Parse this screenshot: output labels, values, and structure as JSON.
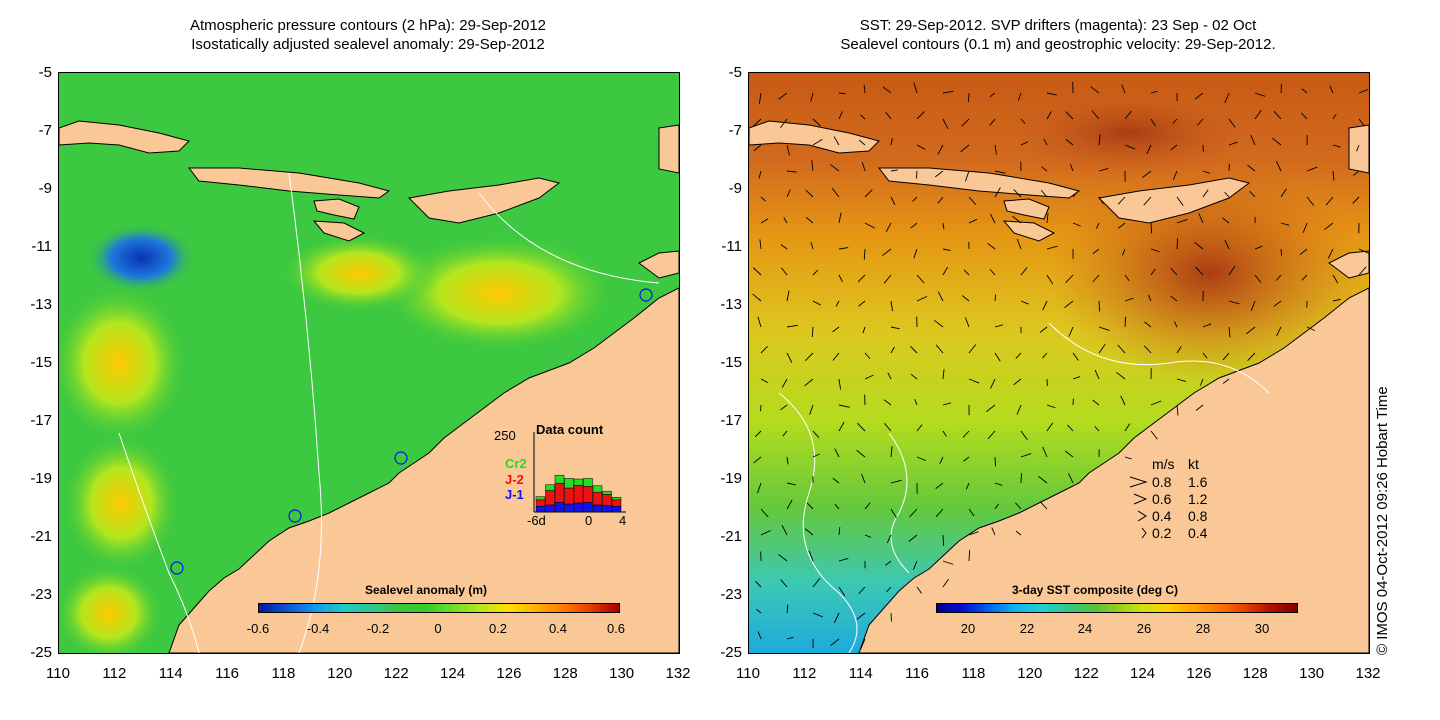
{
  "left_panel": {
    "title_line1": "Atmospheric pressure contours (2 hPa): 29-Sep-2012",
    "title_line2": "Isostatically adjusted sealevel anomaly: 29-Sep-2012",
    "colorbar": {
      "title": "Sealevel anomaly (m)",
      "ticks": [
        "-0.6",
        "-0.4",
        "-0.2",
        "0",
        "0.2",
        "0.4",
        "0.6"
      ],
      "colors": [
        "#081a9a",
        "#0a52d6",
        "#1496e8",
        "#20c8c8",
        "#30c890",
        "#40c040",
        "#30d02a",
        "#70dc2a",
        "#b6e620",
        "#ffe000",
        "#ffb000",
        "#ff7a00",
        "#e63a00",
        "#a00000"
      ]
    },
    "data_count": {
      "title": "Data count",
      "ymax_label": "250",
      "x_labels": [
        "-6d",
        "0",
        "4"
      ],
      "missions": [
        {
          "name": "Cr2",
          "color": "#22dd22"
        },
        {
          "name": "J-2",
          "color": "#ee1111"
        },
        {
          "name": "J-1",
          "color": "#1111ee"
        }
      ],
      "bars": [
        {
          "j1": 18,
          "j2": 20,
          "cr2": 10
        },
        {
          "j1": 22,
          "j2": 45,
          "cr2": 18
        },
        {
          "j1": 30,
          "j2": 60,
          "cr2": 25
        },
        {
          "j1": 25,
          "j2": 50,
          "cr2": 30
        },
        {
          "j1": 28,
          "j2": 55,
          "cr2": 20
        },
        {
          "j1": 30,
          "j2": 50,
          "cr2": 25
        },
        {
          "j1": 22,
          "j2": 40,
          "cr2": 20
        },
        {
          "j1": 20,
          "j2": 35,
          "cr2": 10
        },
        {
          "j1": 18,
          "j2": 20,
          "cr2": 8
        }
      ]
    }
  },
  "right_panel": {
    "title_line1": "SST: 29-Sep-2012. SVP drifters (magenta): 23 Sep - 02 Oct",
    "title_line2": "Sealevel contours (0.1 m) and geostrophic velocity: 29-Sep-2012.",
    "colorbar": {
      "title": "3-day SST composite (deg C)",
      "ticks": [
        "20",
        "22",
        "24",
        "26",
        "28",
        "30"
      ],
      "colors": [
        "#00008c",
        "#0010d0",
        "#0060f0",
        "#10b0f0",
        "#20d0d0",
        "#30c890",
        "#50c040",
        "#90d020",
        "#d0e010",
        "#ffd000",
        "#ffa000",
        "#ff7000",
        "#e04000",
        "#b01000",
        "#800000"
      ]
    },
    "velocity_legend": {
      "header_ms": "m/s",
      "header_kt": "kt",
      "rows": [
        {
          "ms": "0.8",
          "kt": "1.6"
        },
        {
          "ms": "0.6",
          "kt": "1.2"
        },
        {
          "ms": "0.4",
          "kt": "0.8"
        },
        {
          "ms": "0.2",
          "kt": "0.4"
        }
      ]
    }
  },
  "axes": {
    "lat_labels": [
      "-5",
      "-7",
      "-9",
      "-11",
      "-13",
      "-15",
      "-17",
      "-19",
      "-21",
      "-23",
      "-25"
    ],
    "lon_labels": [
      "110",
      "112",
      "114",
      "116",
      "118",
      "120",
      "122",
      "124",
      "126",
      "128",
      "130",
      "132"
    ]
  },
  "credit": "© IMOS 04-Oct-2012 09:26 Hobart Time",
  "colors": {
    "land": "#fac896",
    "ocean_left": "#3cc840",
    "ocean_right_warm": "#d26a1e",
    "ocean_right_mid": "#c8dc1e"
  }
}
